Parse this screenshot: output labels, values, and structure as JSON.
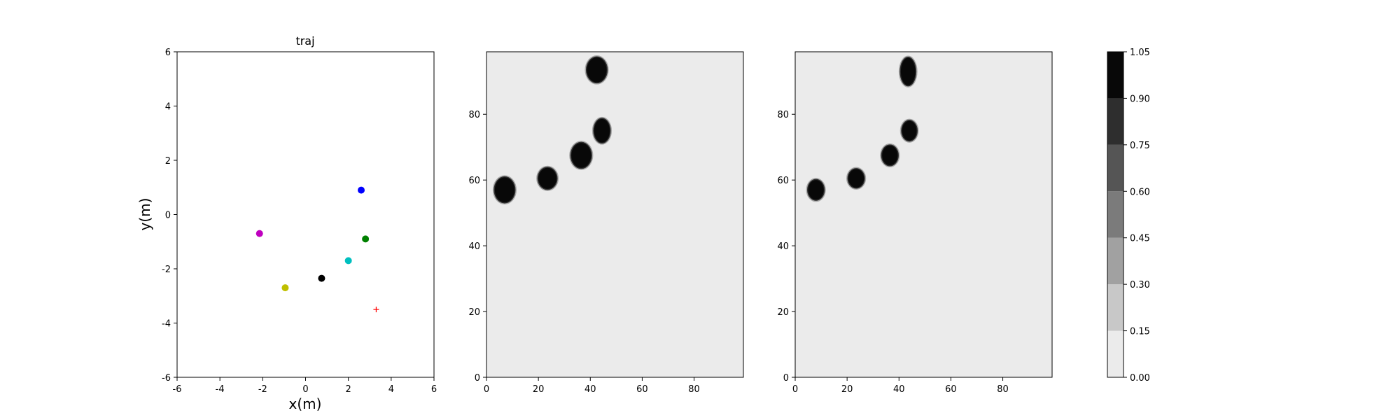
{
  "chart_data": [
    {
      "type": "scatter",
      "title": "traj",
      "xlabel": "x(m)",
      "ylabel": "y(m)",
      "xlim": [
        -6,
        6
      ],
      "ylim": [
        -6,
        6
      ],
      "xticks": [
        "-6",
        "-4",
        "-2",
        "0",
        "2",
        "4",
        "6"
      ],
      "yticks": [
        "-6",
        "-4",
        "-2",
        "0",
        "2",
        "4",
        "6"
      ],
      "grid": false,
      "points": [
        {
          "x": 2.6,
          "y": 0.9,
          "color": "#0000ff",
          "marker": "dot"
        },
        {
          "x": -2.15,
          "y": -0.7,
          "color": "#bf00bf",
          "marker": "dot"
        },
        {
          "x": 2.8,
          "y": -0.9,
          "color": "#008000",
          "marker": "dot"
        },
        {
          "x": 2.0,
          "y": -1.7,
          "color": "#00bfbf",
          "marker": "dot"
        },
        {
          "x": 0.75,
          "y": -2.35,
          "color": "#000000",
          "marker": "dot"
        },
        {
          "x": -0.95,
          "y": -2.7,
          "color": "#bfbf00",
          "marker": "dot"
        },
        {
          "x": 3.3,
          "y": -3.5,
          "color": "#ff0000",
          "marker": "plus"
        }
      ]
    },
    {
      "type": "heatmap",
      "xlim": [
        0,
        99
      ],
      "ylim": [
        0,
        99
      ],
      "xticks": [
        "0",
        "20",
        "40",
        "60",
        "80"
      ],
      "yticks": [
        "0",
        "20",
        "40",
        "60",
        "80"
      ],
      "background_value": 0.05,
      "blobs": [
        {
          "x": 7,
          "y": 57,
          "rx": 3.8,
          "ry": 3.8,
          "value": 1.0
        },
        {
          "x": 23.5,
          "y": 60.5,
          "rx": 3.5,
          "ry": 3.2,
          "value": 1.0
        },
        {
          "x": 36.5,
          "y": 67.5,
          "rx": 3.8,
          "ry": 3.8,
          "value": 1.0
        },
        {
          "x": 44.5,
          "y": 75,
          "rx": 3.0,
          "ry": 3.6,
          "value": 1.0
        },
        {
          "x": 42.5,
          "y": 93.5,
          "rx": 3.8,
          "ry": 3.8,
          "value": 1.0
        }
      ]
    },
    {
      "type": "heatmap",
      "xlim": [
        0,
        99
      ],
      "ylim": [
        0,
        99
      ],
      "xticks": [
        "0",
        "20",
        "40",
        "60",
        "80"
      ],
      "yticks": [
        "0",
        "20",
        "40",
        "60",
        "80"
      ],
      "background_value": 0.05,
      "blobs": [
        {
          "x": 8,
          "y": 57,
          "rx": 3.0,
          "ry": 3.0,
          "value": 1.0
        },
        {
          "x": 23.5,
          "y": 60.5,
          "rx": 3.0,
          "ry": 2.8,
          "value": 1.0
        },
        {
          "x": 36.5,
          "y": 67.5,
          "rx": 3.0,
          "ry": 3.0,
          "value": 1.0
        },
        {
          "x": 44,
          "y": 75,
          "rx": 2.8,
          "ry": 3.0,
          "value": 1.0
        },
        {
          "x": 43.5,
          "y": 93,
          "rx": 2.8,
          "ry": 4.2,
          "value": 1.0
        }
      ]
    }
  ],
  "colorbar": {
    "ticks": [
      "0.00",
      "0.15",
      "0.30",
      "0.45",
      "0.60",
      "0.75",
      "0.90",
      "1.05"
    ],
    "levels": [
      "#ebebeb",
      "#c8c8c8",
      "#a1a1a1",
      "#7b7b7b",
      "#555555",
      "#2e2e2e",
      "#080808"
    ]
  }
}
